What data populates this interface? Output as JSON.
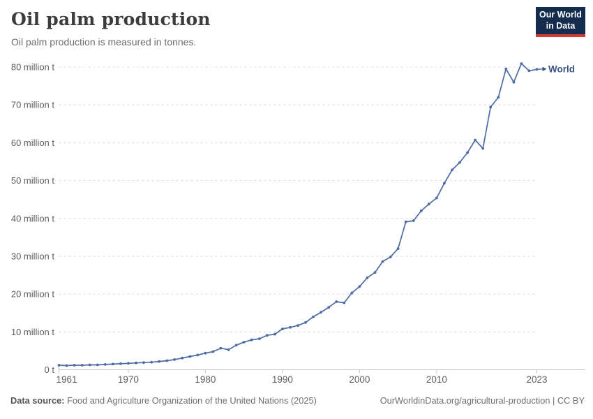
{
  "header": {
    "title": "Oil palm production",
    "subtitle": "Oil palm production is measured in tonnes."
  },
  "logo": {
    "line1": "Our World",
    "line2": "in Data",
    "bg_color": "#142c4e",
    "accent_color": "#d13b3b"
  },
  "footer": {
    "source_label": "Data source:",
    "source_text": " Food and Agriculture Organization of the United Nations (2025)",
    "credit": "OurWorldinData.org/agricultural-production | CC BY"
  },
  "chart_data": {
    "type": "line",
    "title": "Oil palm production",
    "unit": "tonnes",
    "xlim": [
      1961,
      2023
    ],
    "ylim": [
      0,
      80000000
    ],
    "grid": "horizontal-dashed",
    "legend_position": "end-of-line-label",
    "x_ticks": [
      1961,
      1970,
      1980,
      1990,
      2000,
      2010,
      2023
    ],
    "y_ticks": [
      {
        "value": 0,
        "label": "0 t"
      },
      {
        "value": 10,
        "label": "10 million t"
      },
      {
        "value": 20,
        "label": "20 million t"
      },
      {
        "value": 30,
        "label": "30 million t"
      },
      {
        "value": 40,
        "label": "40 million t"
      },
      {
        "value": 50,
        "label": "50 million t"
      },
      {
        "value": 60,
        "label": "60 million t"
      },
      {
        "value": 70,
        "label": "70 million t"
      },
      {
        "value": 80,
        "label": "80 million t"
      }
    ],
    "y_unit_of_values": "million tonnes",
    "series": [
      {
        "name": "World",
        "color": "#4c6ba3",
        "label_color": "#3a5383",
        "years": [
          1961,
          1962,
          1963,
          1964,
          1965,
          1966,
          1967,
          1968,
          1969,
          1970,
          1971,
          1972,
          1973,
          1974,
          1975,
          1976,
          1977,
          1978,
          1979,
          1980,
          1981,
          1982,
          1983,
          1984,
          1985,
          1986,
          1987,
          1988,
          1989,
          1990,
          1991,
          1992,
          1993,
          1994,
          1995,
          1996,
          1997,
          1998,
          1999,
          2000,
          2001,
          2002,
          2003,
          2004,
          2005,
          2006,
          2007,
          2008,
          2009,
          2010,
          2011,
          2012,
          2013,
          2014,
          2015,
          2016,
          2017,
          2018,
          2019,
          2020,
          2021,
          2022,
          2023
        ],
        "values": [
          1.2,
          1.1,
          1.2,
          1.2,
          1.3,
          1.3,
          1.4,
          1.5,
          1.6,
          1.7,
          1.8,
          1.9,
          2.0,
          2.2,
          2.4,
          2.7,
          3.1,
          3.5,
          3.9,
          4.4,
          4.8,
          5.7,
          5.3,
          6.5,
          7.3,
          7.9,
          8.2,
          9.1,
          9.4,
          10.8,
          11.2,
          11.7,
          12.5,
          14.0,
          15.2,
          16.5,
          18.0,
          17.7,
          20.3,
          22.0,
          24.3,
          25.7,
          28.6,
          29.8,
          32.0,
          39.1,
          39.4,
          42.0,
          43.8,
          45.4,
          49.3,
          52.8,
          54.8,
          57.4,
          60.7,
          58.5,
          69.4,
          72.0,
          79.5,
          76.0,
          80.9,
          79.0,
          79.4
        ]
      }
    ]
  }
}
